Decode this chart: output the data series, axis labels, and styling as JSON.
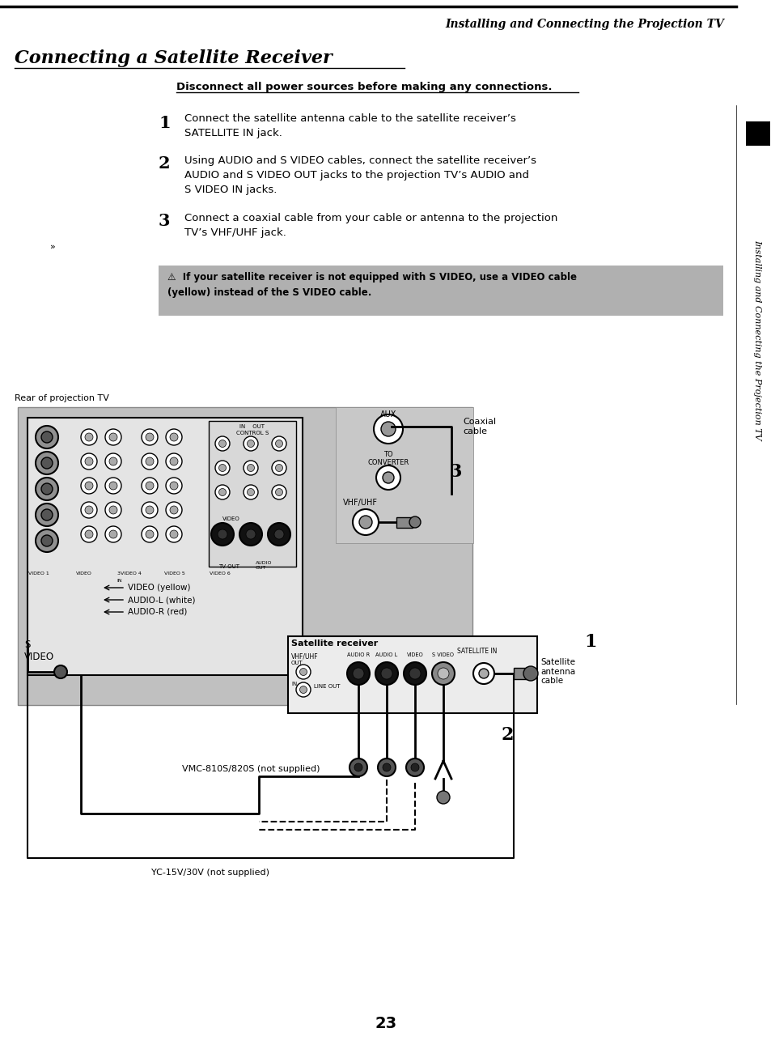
{
  "page_title_italic": "Installing and Connecting the Projection TV",
  "section_title": "Connecting a Satellite Receiver",
  "warning_bold": "Disconnect all power sources before making any connections.",
  "step1_num": "1",
  "step1_text": "Connect the satellite antenna cable to the satellite receiver’s\nSATELLITE IN jack.",
  "step2_num": "2",
  "step2_text": "Using AUDIO and S VIDEO cables, connect the satellite receiver’s\nAUDIO and S VIDEO OUT jacks to the projection TV’s AUDIO and\nS VIDEO IN jacks.",
  "step3_num": "3",
  "step3_text": "Connect a coaxial cable from your cable or antenna to the projection\nTV’s VHF/UHF jack.",
  "note_text": "⚠  If your satellite receiver is not equipped with S VIDEO, use a VIDEO cable\n(yellow) instead of the S VIDEO cable.",
  "note_bg": "#b0b0b0",
  "label_rear": "Rear of projection TV",
  "label_coaxial": "Coaxial\ncable",
  "label_satellite": "Satellite receiver",
  "label_vmc": "VMC-810S/820S (not supplied)",
  "label_yc": "YC-15V/30V (not supplied)",
  "label_video_yellow": "VIDEO (yellow)",
  "label_audio_l": "AUDIO-L (white)",
  "label_audio_r": "AUDIO-R (red)",
  "label_s_video": "S\nVIDEO",
  "label_satellite_antenna": "Satellite\nantenna\ncable",
  "label_1": "1",
  "label_2": "2",
  "label_3": "3",
  "sidebar_text": "Installing and Connecting the Projection TV",
  "page_number": "23",
  "bg_color": "#ffffff",
  "text_color": "#000000"
}
